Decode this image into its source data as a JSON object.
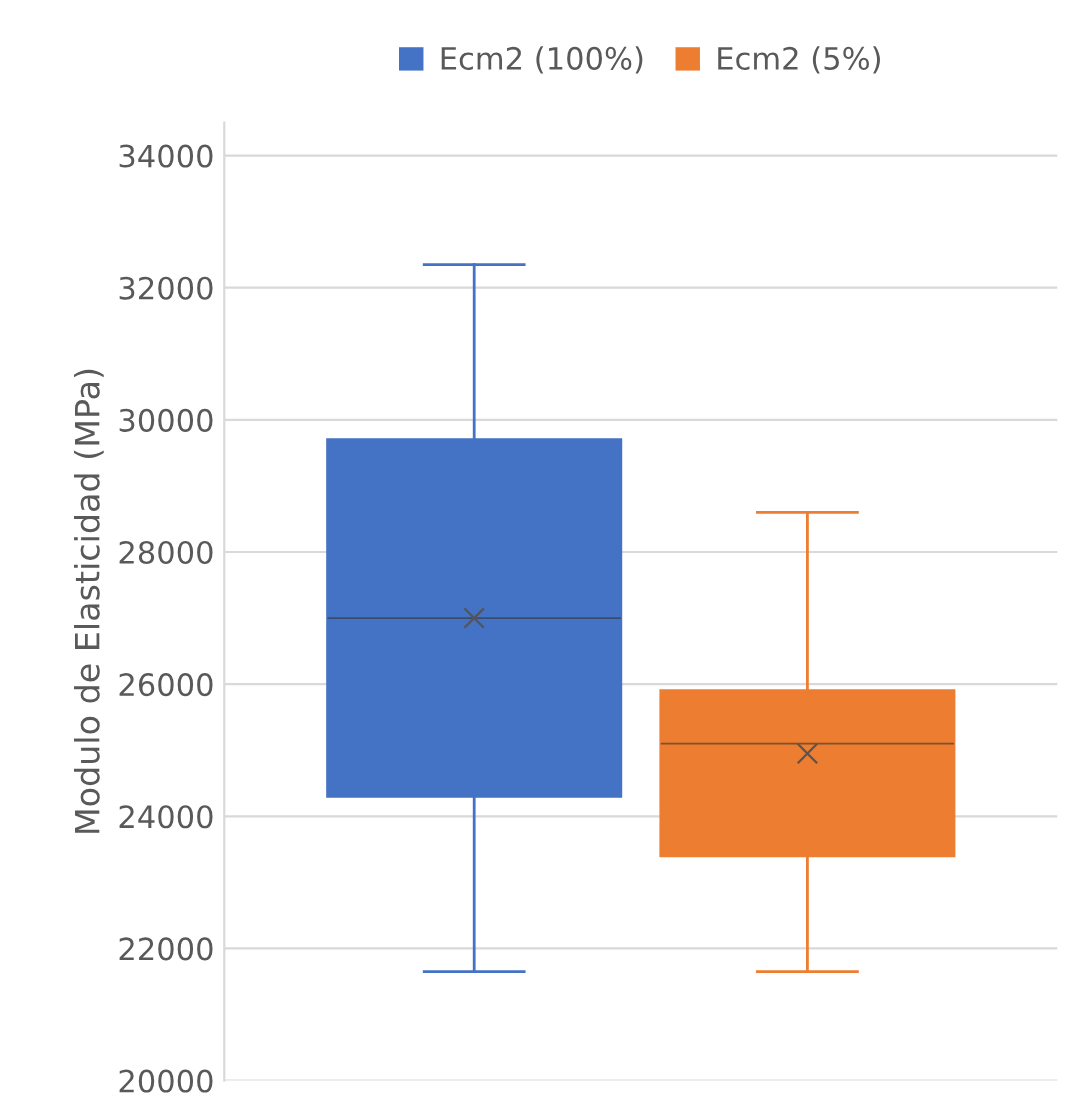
{
  "chart_data": {
    "type": "box",
    "ylabel": "Modulo de Elasticidad (MPa)",
    "categories": [
      null
    ],
    "series": [
      {
        "name": "Ecm2 (100%)",
        "color": "#4472c4",
        "boxes": [
          {
            "low": 21650,
            "q1": 24300,
            "median": 27000,
            "q3": 29700,
            "high": 32350,
            "mean": 27000
          }
        ]
      },
      {
        "name": "Ecm2 (5%)",
        "color": "#ed7d31",
        "boxes": [
          {
            "low": 21650,
            "q1": 23400,
            "median": 25100,
            "q3": 25900,
            "high": 28600,
            "mean": 24950
          }
        ]
      }
    ],
    "ylim": [
      20000,
      34500
    ],
    "yticks": [
      20000,
      22000,
      24000,
      26000,
      28000,
      30000,
      32000,
      34000
    ],
    "grid": "y",
    "legend": "top",
    "tick_labels": "y",
    "marker": "cross"
  }
}
